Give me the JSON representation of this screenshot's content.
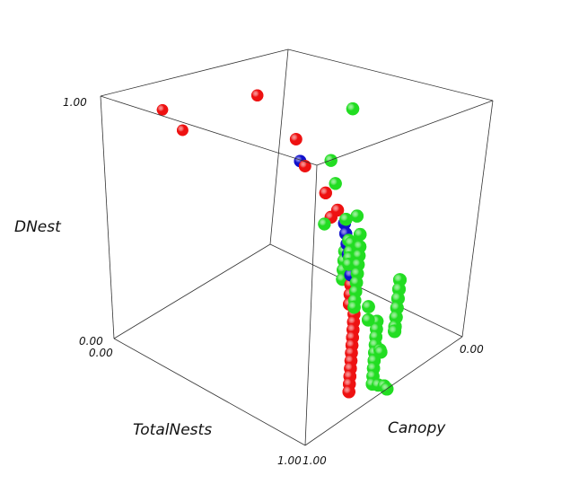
{
  "chart_data": {
    "type": "scatter",
    "dimensions": 3,
    "axes": {
      "x": {
        "label": "TotalNests",
        "range": [
          0.0,
          1.0
        ],
        "tick_labels": [
          "0.00",
          "1.00"
        ]
      },
      "y": {
        "label": "Canopy",
        "range": [
          0.0,
          1.0
        ],
        "tick_labels": [
          "1.00",
          "0.00"
        ]
      },
      "z": {
        "label": "DNest",
        "range": [
          0.0,
          1.0
        ],
        "tick_labels": [
          "0.00",
          "1.00"
        ]
      }
    },
    "colors": {
      "green": "#22dd22",
      "red": "#ee1111",
      "blue": "#1111cc"
    },
    "series": [
      {
        "color": "green",
        "points": [
          [
            0.42,
            0.1,
            0.85
          ],
          [
            0.5,
            0.3,
            0.7
          ],
          [
            0.45,
            0.2,
            0.55
          ],
          [
            0.4,
            0.0,
            0.18
          ],
          [
            0.4,
            0.0,
            0.14
          ],
          [
            0.4,
            0.0,
            0.11
          ],
          [
            0.4,
            0.0,
            0.08
          ],
          [
            0.35,
            0.12,
            0.3
          ],
          [
            0.5,
            0.18,
            0.4
          ],
          [
            0.6,
            0.24,
            0.47
          ],
          [
            0.6,
            0.28,
            0.38
          ],
          [
            0.6,
            0.3,
            0.34
          ],
          [
            0.6,
            0.3,
            0.3
          ],
          [
            0.6,
            0.3,
            0.26
          ],
          [
            0.6,
            0.3,
            0.22
          ],
          [
            0.55,
            0.14,
            0.28
          ],
          [
            0.55,
            0.14,
            0.24
          ],
          [
            0.55,
            0.14,
            0.2
          ],
          [
            0.55,
            0.14,
            0.16
          ],
          [
            0.55,
            0.14,
            0.12
          ],
          [
            0.55,
            0.14,
            0.08
          ],
          [
            0.55,
            0.14,
            0.04
          ],
          [
            0.55,
            0.14,
            0.01
          ],
          [
            0.7,
            0.34,
            0.46
          ],
          [
            0.65,
            0.3,
            0.34
          ],
          [
            0.62,
            0.26,
            0.3
          ],
          [
            0.77,
            0.15,
            0.22
          ],
          [
            0.77,
            0.15,
            0.18
          ],
          [
            0.77,
            0.15,
            0.14
          ],
          [
            0.77,
            0.15,
            0.1
          ],
          [
            0.77,
            0.15,
            0.06
          ],
          [
            0.77,
            0.15,
            0.02
          ],
          [
            0.77,
            0.15,
            0.0
          ],
          [
            0.68,
            0.22,
            0.1
          ],
          [
            0.7,
            0.24,
            0.06
          ],
          [
            1.0,
            0.58,
            0.3
          ],
          [
            1.0,
            0.58,
            0.27
          ],
          [
            1.0,
            0.58,
            0.24
          ],
          [
            1.0,
            0.58,
            0.21
          ],
          [
            1.0,
            0.58,
            0.18
          ],
          [
            1.0,
            0.58,
            0.15
          ],
          [
            1.0,
            0.58,
            0.12
          ],
          [
            1.0,
            0.58,
            0.09
          ],
          [
            1.0,
            0.58,
            0.06
          ],
          [
            1.0,
            0.54,
            0.04
          ],
          [
            1.0,
            0.5,
            0.02
          ],
          [
            1.0,
            0.48,
            0.0
          ],
          [
            0.98,
            0.52,
            0.16
          ],
          [
            0.97,
            0.5,
            0.14
          ]
        ]
      },
      {
        "color": "red",
        "points": [
          [
            0.3,
            0.5,
            0.98
          ],
          [
            0.45,
            0.45,
            0.82
          ],
          [
            0.5,
            0.45,
            0.72
          ],
          [
            0.2,
            0.9,
            0.98
          ],
          [
            0.25,
            0.85,
            0.9
          ],
          [
            0.55,
            0.38,
            0.6
          ],
          [
            0.6,
            0.4,
            0.52
          ],
          [
            0.55,
            0.3,
            0.5
          ],
          [
            0.7,
            0.4,
            0.4
          ],
          [
            0.72,
            0.4,
            0.36
          ],
          [
            0.72,
            0.4,
            0.32
          ],
          [
            0.72,
            0.4,
            0.28
          ],
          [
            0.72,
            0.4,
            0.24
          ],
          [
            0.72,
            0.4,
            0.2
          ],
          [
            0.9,
            0.6,
            0.3
          ],
          [
            0.9,
            0.6,
            0.27
          ],
          [
            0.9,
            0.6,
            0.24
          ],
          [
            0.9,
            0.6,
            0.21
          ],
          [
            0.9,
            0.6,
            0.18
          ],
          [
            0.9,
            0.6,
            0.15
          ],
          [
            0.9,
            0.6,
            0.12
          ],
          [
            0.9,
            0.6,
            0.09
          ],
          [
            0.9,
            0.6,
            0.06
          ],
          [
            0.9,
            0.6,
            0.03
          ],
          [
            0.9,
            0.6,
            0.0
          ]
        ]
      },
      {
        "color": "blue",
        "points": [
          [
            0.5,
            0.48,
            0.75
          ],
          [
            0.62,
            0.34,
            0.48
          ],
          [
            0.63,
            0.34,
            0.44
          ],
          [
            0.64,
            0.34,
            0.4
          ],
          [
            0.65,
            0.34,
            0.36
          ],
          [
            0.66,
            0.34,
            0.32
          ],
          [
            0.67,
            0.34,
            0.28
          ]
        ]
      }
    ]
  }
}
